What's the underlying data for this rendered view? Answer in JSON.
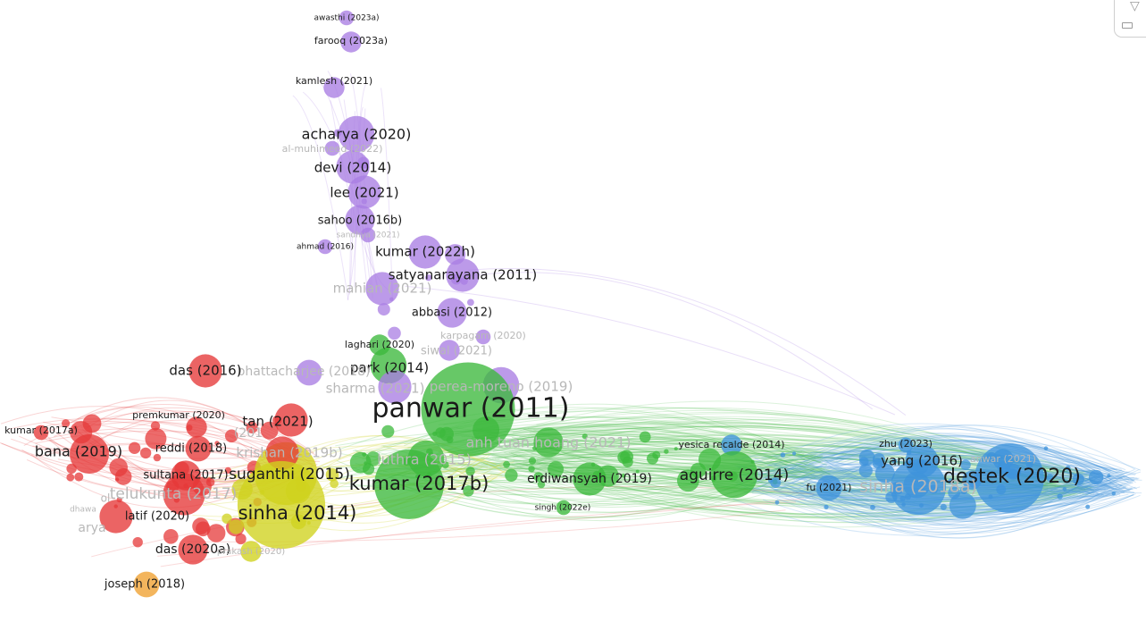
{
  "colors": {
    "purple": "#a97ee3",
    "red": "#e53939",
    "yellow": "#cfd21e",
    "green": "#3cb93c",
    "blue": "#3f93db",
    "orange": "#f0a030"
  },
  "controls": {
    "filter_icon": "triangle-down-icon",
    "minimize_icon": "minimize-icon"
  },
  "network": {
    "nodes": [
      {
        "id": "awasthi",
        "label": "awasthi (2023a)",
        "cluster": "purple",
        "weight": 1
      },
      {
        "id": "farooq",
        "label": "farooq (2023a)",
        "cluster": "purple",
        "weight": 2
      },
      {
        "id": "kamlesh",
        "label": "kamlesh (2021)",
        "cluster": "purple",
        "weight": 2
      },
      {
        "id": "acharya",
        "label": "acharya (2020)",
        "cluster": "purple",
        "weight": 6
      },
      {
        "id": "almuhi",
        "label": "al-muhimeed (2022)",
        "cluster": "purple",
        "weight": 1,
        "faded": true
      },
      {
        "id": "devi",
        "label": "devi (2014)",
        "cluster": "purple",
        "weight": 5
      },
      {
        "id": "lee",
        "label": "lee (2021)",
        "cluster": "purple",
        "weight": 5
      },
      {
        "id": "sahoo",
        "label": "sahoo (2016b)",
        "cluster": "purple",
        "weight": 4
      },
      {
        "id": "sandhya",
        "label": "sandhya (2021)",
        "cluster": "purple",
        "weight": 1,
        "faded": true
      },
      {
        "id": "ahmad",
        "label": "ahmad (2016)",
        "cluster": "purple",
        "weight": 1
      },
      {
        "id": "kumar2022h",
        "label": "kumar (2022h)",
        "cluster": "purple",
        "weight": 5
      },
      {
        "id": "satyanarayana",
        "label": "satyanarayana (2011)",
        "cluster": "purple",
        "weight": 5
      },
      {
        "id": "mahian",
        "label": "mahian (2021)",
        "cluster": "purple",
        "weight": 5,
        "faded": true
      },
      {
        "id": "abbasi",
        "label": "abbasi (2012)",
        "cluster": "purple",
        "weight": 4
      },
      {
        "id": "karpagam",
        "label": "karpagam (2020)",
        "cluster": "purple",
        "weight": 1,
        "faded": true
      },
      {
        "id": "siwal",
        "label": "siwal (2021)",
        "cluster": "purple",
        "weight": 2,
        "faded": true
      },
      {
        "id": "laghari",
        "label": "laghari (2020)",
        "cluster": "green",
        "weight": 2
      },
      {
        "id": "park",
        "label": "park (2014)",
        "cluster": "green",
        "weight": 6
      },
      {
        "id": "bhattacharjee",
        "label": "bhattacharjee (2018)",
        "cluster": "purple",
        "weight": 3,
        "faded": true
      },
      {
        "id": "sharma",
        "label": "sharma (2021)",
        "cluster": "purple",
        "weight": 5,
        "faded": true
      },
      {
        "id": "perea",
        "label": "perea-moreno (2019)",
        "cluster": "purple",
        "weight": 6,
        "faded": true
      },
      {
        "id": "das2016",
        "label": "das (2016)",
        "cluster": "red",
        "weight": 5
      },
      {
        "id": "panwar",
        "label": "panwar (2011)",
        "cluster": "green",
        "weight": 40
      },
      {
        "id": "premkumar",
        "label": "premkumar (2020)",
        "cluster": "red",
        "weight": 2
      },
      {
        "id": "tan",
        "label": "tan (2021)",
        "cluster": "red",
        "weight": 5
      },
      {
        "id": "kumar2017a",
        "label": "kumar (2017a)",
        "cluster": "red",
        "weight": 1
      },
      {
        "id": "reddi",
        "label": "reddi (2018)",
        "cluster": "red",
        "weight": 3
      },
      {
        "id": "bana",
        "label": "bana (2019)",
        "cluster": "red",
        "weight": 7
      },
      {
        "id": "anhtuan",
        "label": "anh tuan hoang (2021)",
        "cluster": "green",
        "weight": 4,
        "faded": true
      },
      {
        "id": "luthra",
        "label": "luthra (2015)",
        "cluster": "green",
        "weight": 6,
        "faded": true
      },
      {
        "id": "yesica",
        "label": "yesica recalde (2014)",
        "cluster": "blue",
        "weight": 2
      },
      {
        "id": "zhu",
        "label": "zhu (2023)",
        "cluster": "blue",
        "weight": 1
      },
      {
        "id": "anwar",
        "label": "anwar (2021)",
        "cluster": "blue",
        "weight": 2,
        "faded": true
      },
      {
        "id": "yang",
        "label": "yang (2016)",
        "cluster": "blue",
        "weight": 5
      },
      {
        "id": "destek",
        "label": "destek (2020)",
        "cluster": "blue",
        "weight": 22
      },
      {
        "id": "sultana",
        "label": "sultana (2017)",
        "cluster": "red",
        "weight": 4
      },
      {
        "id": "suganthi",
        "label": "suganthi (2015)",
        "cluster": "yellow",
        "weight": 18
      },
      {
        "id": "krishan",
        "label": "krishan (2019b)",
        "cluster": "red",
        "weight": 5,
        "faded": true
      },
      {
        "id": "kumar2017b",
        "label": "kumar (2017b)",
        "cluster": "green",
        "weight": 22
      },
      {
        "id": "erdiwansyah",
        "label": "erdiwansyah (2019)",
        "cluster": "green",
        "weight": 5
      },
      {
        "id": "aguirre",
        "label": "aguirre (2014)",
        "cluster": "green",
        "weight": 10
      },
      {
        "id": "fu",
        "label": "fu (2021)",
        "cluster": "blue",
        "weight": 3
      },
      {
        "id": "sinha2018",
        "label": "sinha (2018a)",
        "cluster": "blue",
        "weight": 14,
        "faded": true
      },
      {
        "id": "telukunta",
        "label": "telukunta (2017)",
        "cluster": "red",
        "weight": 8,
        "faded": true
      },
      {
        "id": "sinha2014",
        "label": "sinha (2014)",
        "cluster": "yellow",
        "weight": 35
      },
      {
        "id": "latif",
        "label": "latif (2020)",
        "cluster": "red",
        "weight": 5
      },
      {
        "id": "singh",
        "label": "singh (2022e)",
        "cluster": "green",
        "weight": 1
      },
      {
        "id": "das2020a",
        "label": "das (2020a)",
        "cluster": "red",
        "weight": 4
      },
      {
        "id": "prakash",
        "label": "prakash (2020)",
        "cluster": "yellow",
        "weight": 2,
        "faded": true
      },
      {
        "id": "joseph",
        "label": "joseph (2018)",
        "cluster": "orange",
        "weight": 3
      }
    ],
    "partial_labels": [
      {
        "text": "ol",
        "faded": true
      },
      {
        "text": "dhawa",
        "faded": true
      },
      {
        "text": "arya",
        "faded": true
      },
      {
        "text": "(201",
        "faded": true
      }
    ]
  }
}
